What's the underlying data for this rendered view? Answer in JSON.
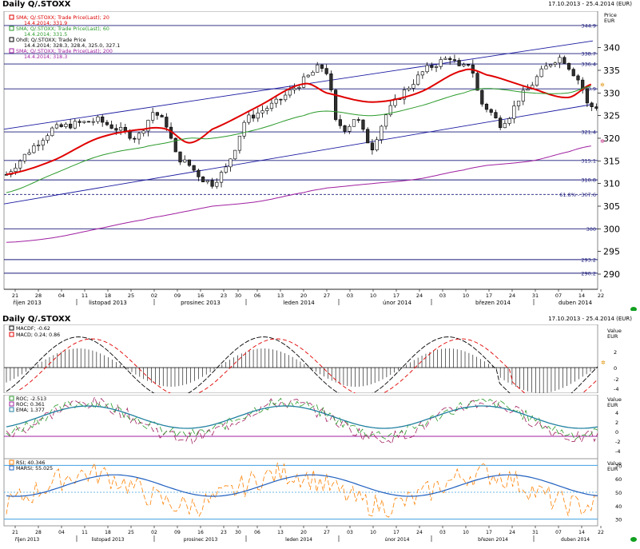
{
  "chart1": {
    "title": "Daily Q/.STOXX",
    "range": "17.10.2013 - 25.4.2014",
    "currency": "(EUR)",
    "axis_unit_line1": "Price",
    "axis_unit_line2": "EUR",
    "legend": [
      {
        "label": "SMA; Q/.STOXX; Trade Price(Last); 20",
        "value": "14.4.2014; 331.9",
        "color": "#e00000"
      },
      {
        "label": "SMA; Q/.STOXX; Trade Price(Last); 60",
        "value": "14.4.2014; 331.5",
        "color": "#2a9a2a"
      },
      {
        "label": "Ohdl; Q/.STOXX; Trade Price",
        "value": "14.4.2014; 328.3, 328.4, 325.0, 327.1",
        "color": "#000000"
      },
      {
        "label": "SMA; Q/.STOXX; Trade Price(Last); 200",
        "value": "14.4.2014; 318.3",
        "color": "#a020a0"
      }
    ],
    "hlines": [
      {
        "value": 344.9,
        "label": "344.9"
      },
      {
        "value": 338.7,
        "label": "338.7"
      },
      {
        "value": 336.4,
        "label": "336.4"
      },
      {
        "value": 330.9,
        "label": "330.9"
      },
      {
        "value": 321.4,
        "label": "321.4"
      },
      {
        "value": 315.1,
        "label": "315.1"
      },
      {
        "value": 310.8,
        "label": "310.8"
      },
      {
        "value": 300,
        "label": "300"
      },
      {
        "value": 293.2,
        "label": "293.2"
      },
      {
        "value": 290.2,
        "label": "290.2"
      }
    ],
    "fib_label": "61.8% - 307.6",
    "fib_value": 307.6,
    "yticks": [
      290,
      295,
      300,
      305,
      310,
      315,
      320,
      325,
      330,
      335,
      340
    ]
  },
  "xaxis": {
    "days": [
      "21",
      "28",
      "04",
      "11",
      "18",
      "25",
      "02",
      "09",
      "16",
      "23",
      "30",
      "06",
      "13",
      "20",
      "27",
      "03",
      "10",
      "17",
      "24",
      "03",
      "10",
      "17",
      "24",
      "31",
      "07",
      "14",
      "22"
    ],
    "months": [
      {
        "label": "říjen 2013"
      },
      {
        "label": "listopad 2013"
      },
      {
        "label": "prosinec 2013"
      },
      {
        "label": "leden 2014"
      },
      {
        "label": "únor 2014"
      },
      {
        "label": "březen 2014"
      },
      {
        "label": "duben 2014"
      }
    ]
  },
  "chart2": {
    "title": "Daily Q/.STOXX",
    "range": "17.10.2013 - 25.4.2014 (EUR)",
    "axis_unit_line1": "Value",
    "axis_unit_line2": "EUR",
    "legend": [
      {
        "label": "MACDF; -0.62",
        "color": "#000000"
      },
      {
        "label": "MACD; 0.24; 0.86",
        "color": "#e00000"
      }
    ],
    "yticks": [
      "2",
      "0",
      "-2",
      "-4"
    ]
  },
  "chart3": {
    "axis_unit_line1": "Value",
    "axis_unit_line2": "EUR",
    "legend": [
      {
        "label": "ROC; -2.513",
        "color": "#2a9a2a"
      },
      {
        "label": "ROC; 0.361",
        "color": "#a020a0"
      },
      {
        "label": "EMA; 1.377",
        "color": "#2080a0"
      }
    ],
    "yticks": [
      "4",
      "2",
      "0",
      "-2",
      "-4"
    ]
  },
  "chart4": {
    "axis_unit_line1": "Value",
    "axis_unit_line2": "EUR",
    "legend": [
      {
        "label": "RSI; 40.346",
        "color": "#ff8000"
      },
      {
        "label": "MARSI; 55.025",
        "color": "#2060c0"
      }
    ],
    "yticks": [
      "70",
      "60",
      "50",
      "40",
      "30"
    ]
  },
  "chart_data": [
    {
      "type": "line",
      "title": "Daily Q/.STOXX",
      "ylabel": "Price EUR",
      "ylim": [
        287,
        347
      ],
      "x": [
        "2013-10-17",
        "2013-10-31",
        "2013-11-14",
        "2013-11-28",
        "2013-12-05",
        "2013-12-12",
        "2013-12-19",
        "2014-01-02",
        "2014-01-16",
        "2014-01-23",
        "2014-02-06",
        "2014-02-20",
        "2014-03-06",
        "2014-03-13",
        "2014-03-27",
        "2014-04-07",
        "2014-04-14"
      ],
      "series": [
        {
          "name": "SMA 20",
          "values": [
            312,
            315,
            320,
            322,
            322,
            319,
            322,
            327,
            332,
            330,
            328,
            330,
            335,
            334,
            331,
            329,
            331.9
          ]
        },
        {
          "name": "SMA 60",
          "values": [
            308,
            312,
            316,
            318,
            319,
            320,
            320,
            322,
            325,
            326,
            325,
            327,
            330,
            331,
            330,
            330,
            331.5
          ]
        },
        {
          "name": "SMA 200",
          "values": [
            297,
            298,
            300,
            302,
            303,
            304,
            305,
            306,
            308,
            309,
            310,
            311,
            313,
            314,
            315,
            317,
            318.3
          ]
        },
        {
          "name": "Close",
          "values": [
            312,
            320,
            323,
            324,
            316,
            310,
            322,
            330,
            335,
            330,
            320,
            334,
            337,
            325,
            330,
            335,
            327.1
          ]
        }
      ]
    }
  ]
}
